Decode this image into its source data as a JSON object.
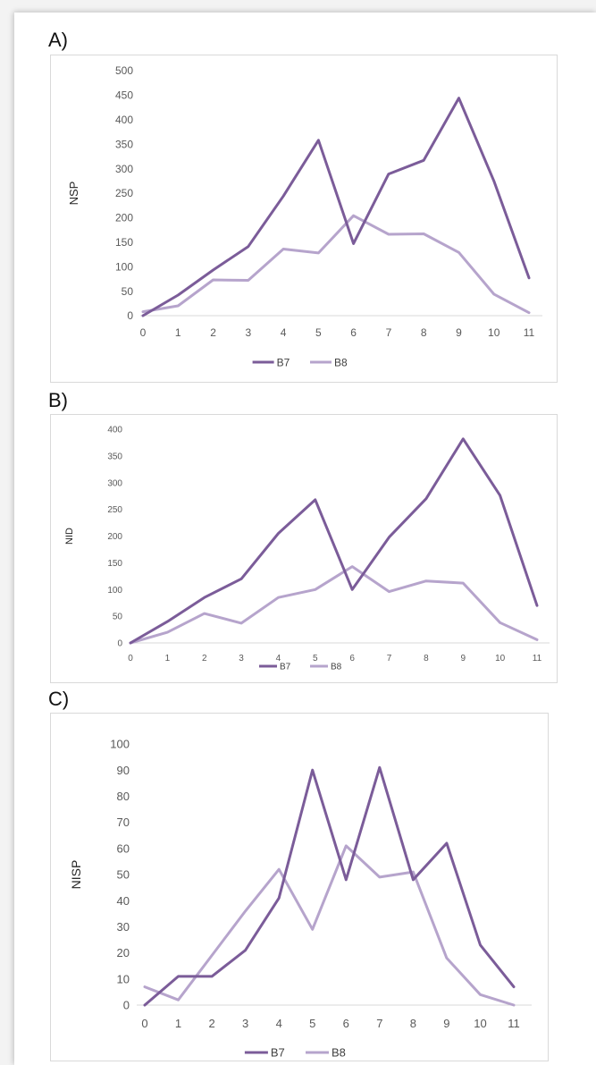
{
  "colors": {
    "b7": "#7b5c99",
    "b8": "#b6a4cc"
  },
  "chart_data": [
    {
      "panel": "A)",
      "type": "line",
      "ylabel": "NSP",
      "ylim": [
        0,
        500
      ],
      "yticks": [
        "0",
        "50",
        "100",
        "150",
        "200",
        "250",
        "300",
        "350",
        "400",
        "450",
        "500"
      ],
      "categories": [
        "0",
        "1",
        "2",
        "3",
        "4",
        "5",
        "6",
        "7",
        "8",
        "9",
        "10",
        "11"
      ],
      "series": [
        {
          "name": "B7",
          "values": [
            0,
            42,
            93,
            141,
            244,
            358,
            147,
            289,
            317,
            444,
            275,
            77
          ]
        },
        {
          "name": "B8",
          "values": [
            8,
            20,
            73,
            72,
            136,
            128,
            204,
            166,
            167,
            129,
            44,
            6
          ]
        }
      ],
      "legend": "bottom"
    },
    {
      "panel": "B)",
      "type": "line",
      "ylabel": "NID",
      "ylim": [
        0,
        400
      ],
      "yticks": [
        "0",
        "50",
        "100",
        "150",
        "200",
        "250",
        "300",
        "350",
        "400"
      ],
      "categories": [
        "0",
        "1",
        "2",
        "3",
        "4",
        "5",
        "6",
        "7",
        "8",
        "9",
        "10",
        "11"
      ],
      "series": [
        {
          "name": "B7",
          "values": [
            0,
            40,
            85,
            120,
            205,
            268,
            100,
            198,
            270,
            382,
            276,
            70
          ]
        },
        {
          "name": "B8",
          "values": [
            0,
            20,
            55,
            37,
            85,
            100,
            143,
            96,
            116,
            112,
            38,
            6
          ]
        }
      ],
      "legend": "bottom"
    },
    {
      "panel": "C)",
      "type": "line",
      "ylabel": "NISP",
      "ylim": [
        0,
        100
      ],
      "yticks": [
        "0",
        "10",
        "20",
        "30",
        "40",
        "50",
        "60",
        "70",
        "80",
        "90",
        "100"
      ],
      "categories": [
        "0",
        "1",
        "2",
        "3",
        "4",
        "5",
        "6",
        "7",
        "8",
        "9",
        "10",
        "11"
      ],
      "series": [
        {
          "name": "B7",
          "values": [
            0,
            11,
            11,
            21,
            41,
            90,
            48,
            91,
            48,
            62,
            23,
            7
          ]
        },
        {
          "name": "B8",
          "values": [
            7,
            2,
            19,
            36,
            52,
            29,
            61,
            49,
            51,
            18,
            4,
            0
          ]
        }
      ],
      "legend": "bottom"
    }
  ]
}
